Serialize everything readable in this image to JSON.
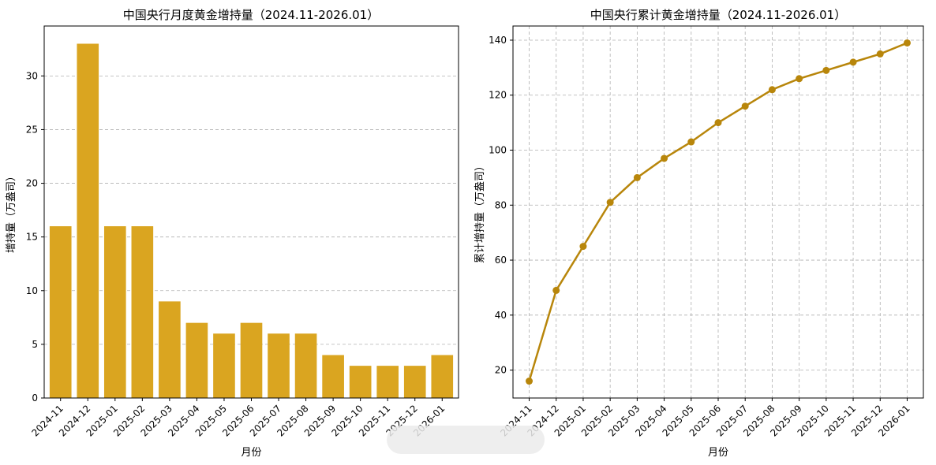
{
  "chart_data": [
    {
      "type": "bar",
      "title": "中国央行月度黄金增持量（2024.11-2026.01）",
      "xlabel": "月份",
      "ylabel": "增持量（万盎司）",
      "categories": [
        "2024-11",
        "2024-12",
        "2025-01",
        "2025-02",
        "2025-03",
        "2025-04",
        "2025-05",
        "2025-06",
        "2025-07",
        "2025-08",
        "2025-09",
        "2025-10",
        "2025-11",
        "2025-12",
        "2026-01"
      ],
      "values": [
        16,
        33,
        16,
        16,
        9,
        7,
        6,
        7,
        6,
        6,
        4,
        3,
        3,
        3,
        4
      ],
      "ylim": [
        0,
        34.65
      ],
      "yticks": [
        0,
        5,
        10,
        15,
        20,
        25,
        30
      ],
      "grid": "y",
      "color": "#DAA520"
    },
    {
      "type": "line",
      "title": "中国央行累计黄金增持量（2024.11-2026.01）",
      "xlabel": "月份",
      "ylabel": "累计增持量（万盎司）",
      "categories": [
        "2024-11",
        "2024-12",
        "2025-01",
        "2025-02",
        "2025-03",
        "2025-04",
        "2025-05",
        "2025-06",
        "2025-07",
        "2025-08",
        "2025-09",
        "2025-10",
        "2025-11",
        "2025-12",
        "2026-01"
      ],
      "values": [
        16,
        49,
        65,
        81,
        90,
        97,
        103,
        110,
        116,
        122,
        126,
        129,
        132,
        135,
        139
      ],
      "ylim": [
        9.85,
        145.15
      ],
      "yticks": [
        20,
        40,
        60,
        80,
        100,
        120,
        140
      ],
      "grid": "both",
      "color": "#B8860B"
    }
  ]
}
